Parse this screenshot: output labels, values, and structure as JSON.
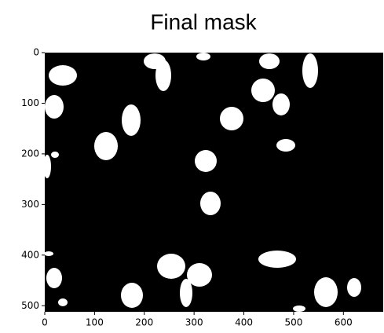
{
  "chart_data": {
    "type": "image",
    "title": "Final mask",
    "xlim": [
      0,
      680
    ],
    "ylim": [
      512,
      0
    ],
    "xticks": [
      0,
      100,
      200,
      300,
      400,
      500,
      600
    ],
    "yticks": [
      0,
      100,
      200,
      300,
      400,
      500
    ]
  }
}
